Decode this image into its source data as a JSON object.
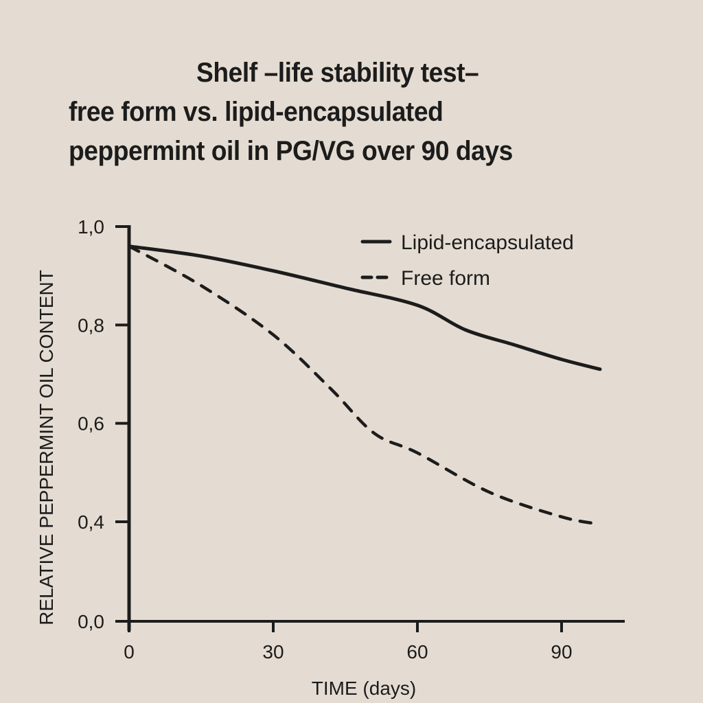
{
  "chart_data": {
    "type": "line",
    "title_lines": [
      "Shelf –life stability test–",
      "free form vs. lipid-encapsulated",
      "peppermint oil in PG/VG over 90 days"
    ],
    "xlabel": "TIME (days)",
    "ylabel": "RELATIVE PEPPERMINT OIL CONTENT",
    "xlim": [
      0,
      103
    ],
    "ylim": [
      0.0,
      1.0
    ],
    "x_ticks": [
      0,
      30,
      60,
      90
    ],
    "x_tick_labels": [
      "0",
      "30",
      "60",
      "90"
    ],
    "y_ticks": [
      1.0,
      0.8,
      0.6,
      0.4,
      0.0
    ],
    "y_tick_labels": [
      "1,0",
      "0,8",
      "0,6",
      "0,4",
      "0,0"
    ],
    "y_axis_note": "axis compressed between 0.4 and 0.0",
    "grid": false,
    "legend_position": "top-right",
    "series": [
      {
        "name": "Lipid-encapsulated",
        "style": "solid",
        "color": "#1c1c1c",
        "x": [
          0,
          15,
          30,
          45,
          60,
          70,
          80,
          90,
          98
        ],
        "y": [
          0.96,
          0.94,
          0.91,
          0.875,
          0.84,
          0.79,
          0.76,
          0.73,
          0.71
        ]
      },
      {
        "name": "Free form",
        "style": "dashed",
        "color": "#1c1c1c",
        "x": [
          0,
          15,
          30,
          42,
          51,
          60,
          75,
          90,
          98
        ],
        "y": [
          0.96,
          0.88,
          0.78,
          0.67,
          0.58,
          0.54,
          0.46,
          0.41,
          0.39
        ]
      }
    ]
  },
  "colors": {
    "background": "#e4dcd2",
    "ink": "#1c1c1c"
  }
}
